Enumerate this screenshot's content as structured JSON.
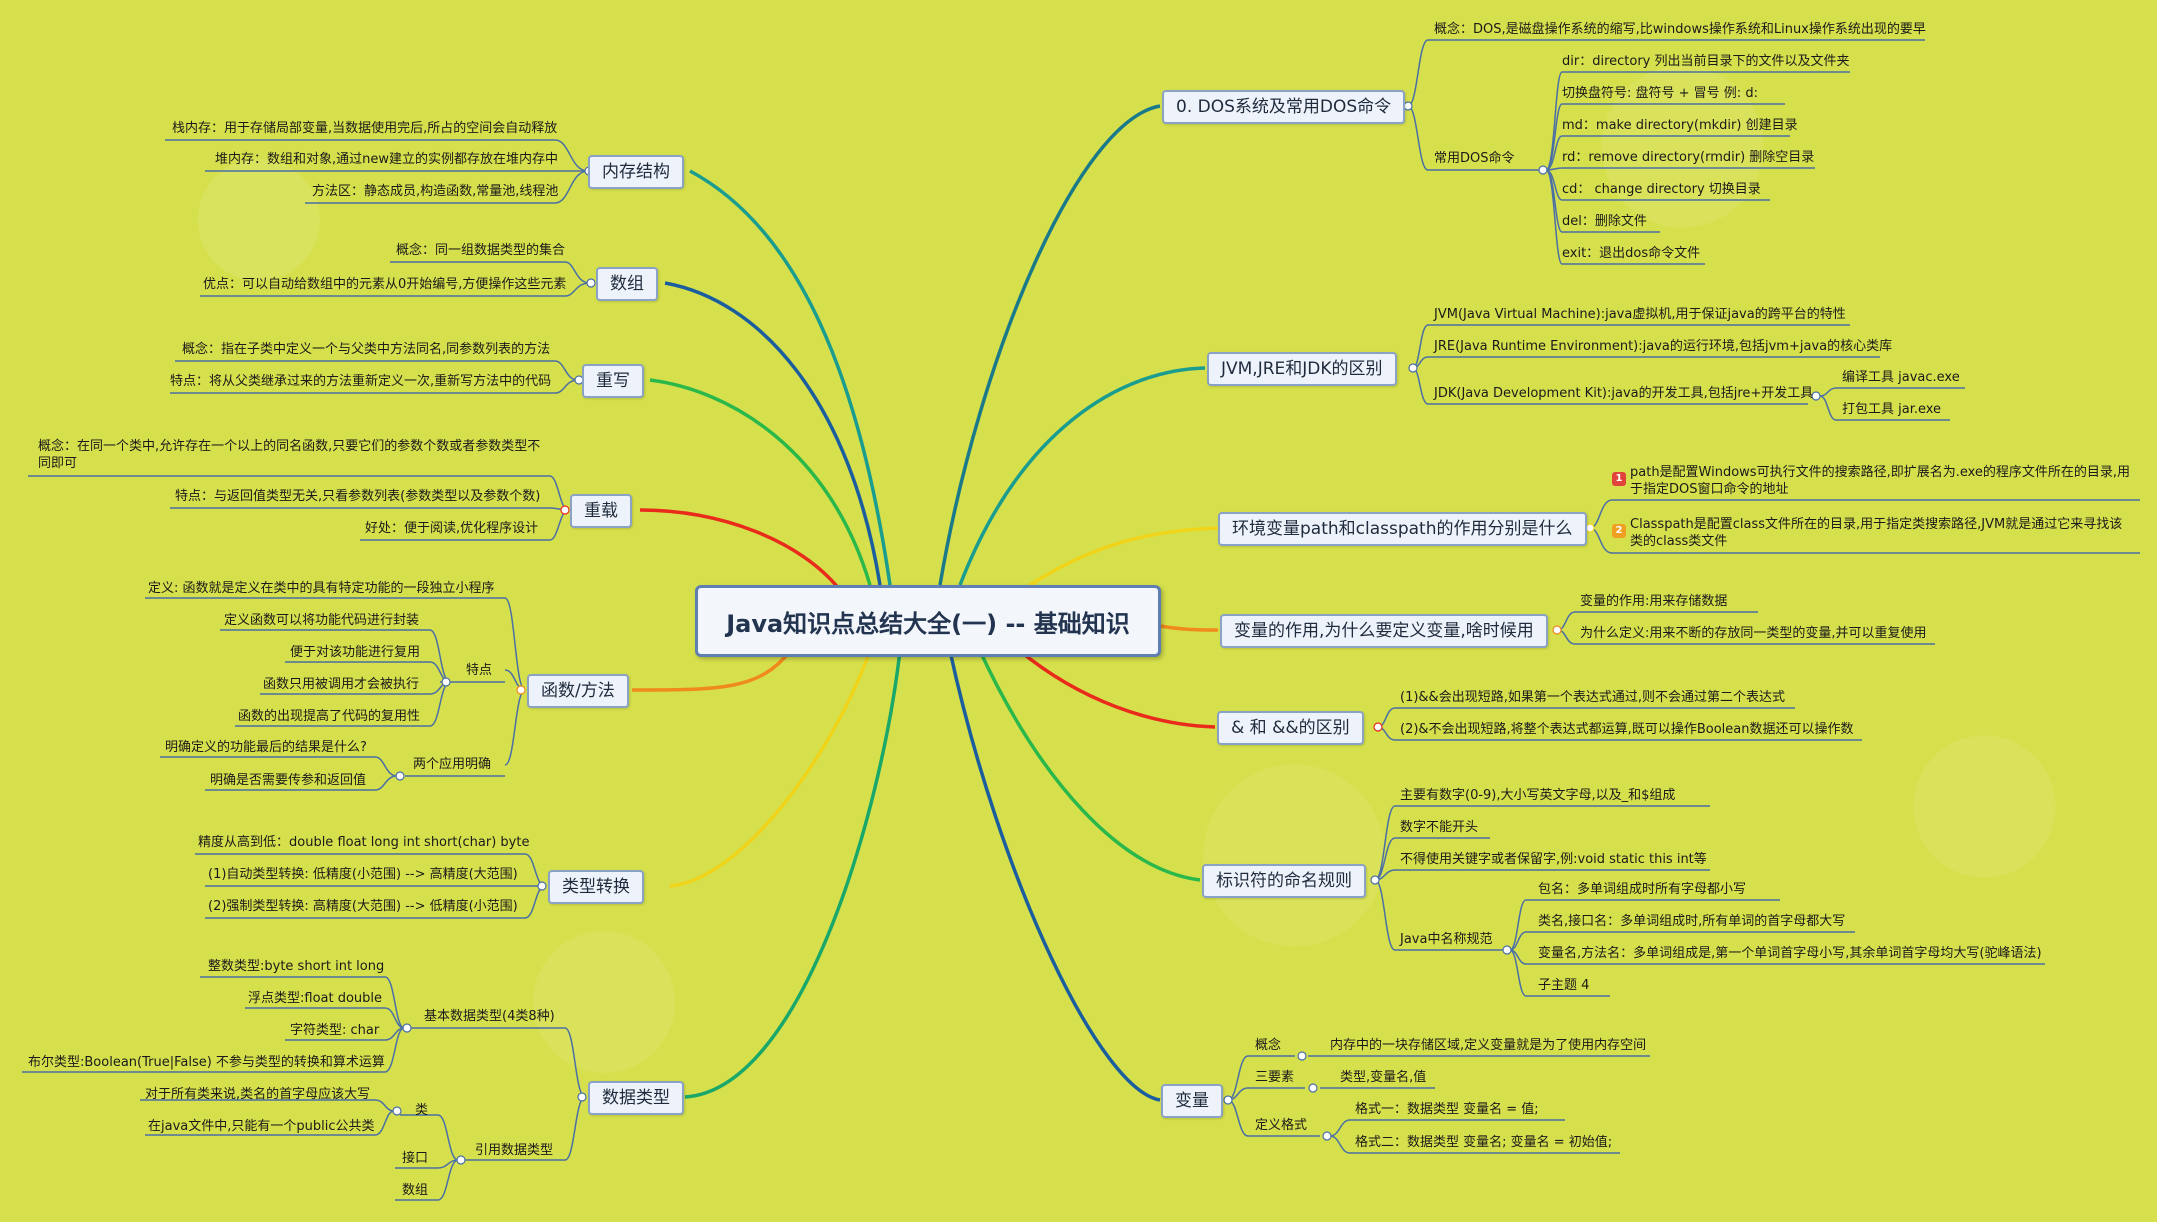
{
  "title": "Java知识点总结大全(一) -- 基础知识",
  "colors": {
    "background": "#d6e04c",
    "node_fill": "#eef3fb",
    "node_border": "#8aa2c6",
    "leaf_line": "#4a6fa5",
    "badge1": "#e0443a",
    "badge2": "#f0a020"
  },
  "left": {
    "memory": {
      "label": "内存结构",
      "items": [
        "栈内存：用于存储局部变量,当数据使用完后,所占的空间会自动释放",
        "堆内存：数组和对象,通过new建立的实例都存放在堆内存中",
        "方法区：静态成员,构造函数,常量池,线程池"
      ]
    },
    "array": {
      "label": "数组",
      "items": [
        "概念：同一组数据类型的集合",
        "优点：可以自动给数组中的元素从0开始编号,方便操作这些元素"
      ]
    },
    "override": {
      "label": "重写",
      "items": [
        "概念：指在子类中定义一个与父类中方法同名,同参数列表的方法",
        "特点：将从父类继承过来的方法重新定义一次,重新写方法中的代码"
      ]
    },
    "overload": {
      "label": "重载",
      "items": [
        "概念：在同一个类中,允许存在一个以上的同名函数,只要它们的参数个数或者参数类型不同即可",
        "特点：与返回值类型无关,只看参数列表(参数类型以及参数个数)",
        "好处：便于阅读,优化程序设计"
      ]
    },
    "function": {
      "label": "函数/方法",
      "definition": "定义: 函数就是定义在类中的具有特定功能的一段独立小程序",
      "features_label": "特点",
      "features": [
        "定义函数可以将功能代码进行封装",
        "便于对该功能进行复用",
        "函数只用被调用才会被执行",
        "函数的出现提高了代码的复用性"
      ],
      "clarify_label": "两个应用明确",
      "clarify": [
        "明确定义的功能最后的结果是什么?",
        "明确是否需要传参和返回值"
      ]
    },
    "cast": {
      "label": "类型转换",
      "items": [
        "精度从高到低：double float long int short(char) byte",
        "(1)自动类型转换: 低精度(小范围) --> 高精度(大范围)",
        "(2)强制类型转换: 高精度(大范围) --> 低精度(小范围)"
      ]
    },
    "datatype": {
      "label": "数据类型",
      "basic_label": "基本数据类型(4类8种)",
      "basic": [
        "整数类型:byte short int long",
        "浮点类型:float double",
        "字符类型: char",
        "布尔类型:Boolean(True|False)   不参与类型的转换和算术运算"
      ],
      "ref_label": "引用数据类型",
      "class_label": "类",
      "class_items": [
        "对于所有类来说,类名的首字母应该大写",
        "在java文件中,只能有一个public公共类"
      ],
      "interface_label": "接口",
      "array_label": "数组"
    }
  },
  "right": {
    "dos": {
      "label": "0. DOS系统及常用DOS命令",
      "concept": "概念：DOS,是磁盘操作系统的缩写,比windows操作系统和Linux操作系统出现的要早",
      "cmd_label": "常用DOS命令",
      "cmds": [
        "dir：directory  列出当前目录下的文件以及文件夹",
        "切换盘符号:   盘符号  +  冒号   例:   d:",
        "md：make directory(mkdir) 创建目录",
        "rd：remove directory(rmdir)  删除空目录",
        "cd：  change directory 切换目录",
        "del：删除文件",
        "exit：退出dos命令文件"
      ]
    },
    "jvm": {
      "label": "JVM,JRE和JDK的区别",
      "jvm": "JVM(Java Virtual Machine):java虚拟机,用于保证java的跨平台的特性",
      "jre": "JRE(Java Runtime Environment):java的运行环境,包括jvm+java的核心类库",
      "jdk": "JDK(Java Development Kit):java的开发工具,包括jre+开发工具",
      "tools": [
        "编译工具 javac.exe",
        "打包工具 jar.exe"
      ]
    },
    "env": {
      "label": "环境变量path和classpath的作用分别是什么",
      "badge1": "1",
      "badge2": "2",
      "path": "path是配置Windows可执行文件的搜索路径,即扩展名为.exe的程序文件所在的目录,用于指定DOS窗口命令的地址",
      "classpath": "Classpath是配置class文件所在的目录,用于指定类搜索路径,JVM就是通过它来寻找该类的class类文件"
    },
    "var_use": {
      "label": "变量的作用,为什么要定义变量,啥时候用",
      "items": [
        "变量的作用:用来存储数据",
        "为什么定义:用来不断的存放同一类型的变量,并可以重复使用"
      ]
    },
    "and": {
      "label": "& 和 &&的区别",
      "items": [
        "(1)&&会出现短路,如果第一个表达式通过,则不会通过第二个表达式",
        "(2)&不会出现短路,将整个表达式都运算,既可以操作Boolean数据还可以操作数"
      ]
    },
    "ident": {
      "label": "标识符的命名规则",
      "items": [
        "主要有数字(0-9),大小写英文字母,以及_和$组成",
        "数字不能开头",
        "不得使用关键字或者保留字,例:void static this int等"
      ],
      "naming_label": "Java中名称规范",
      "naming": [
        "包名：多单词组成时所有字母都小写",
        "类名,接口名：多单词组成时,所有单词的首字母都大写",
        "变量名,方法名：多单词组成是,第一个单词首字母小写,其余单词首字母均大写(驼峰语法)",
        "子主题 4"
      ]
    },
    "variable": {
      "label": "变量",
      "concept_label": "概念",
      "concept": "内存中的一块存储区域,定义变量就是为了使用内存空间",
      "three_label": "三要素",
      "three": "类型,变量名,值",
      "format_label": "定义格式",
      "formats": [
        "格式一：数据类型  变量名  =  值;",
        "格式二：数据类型  变量名;  变量名  =  初始值;"
      ]
    }
  }
}
